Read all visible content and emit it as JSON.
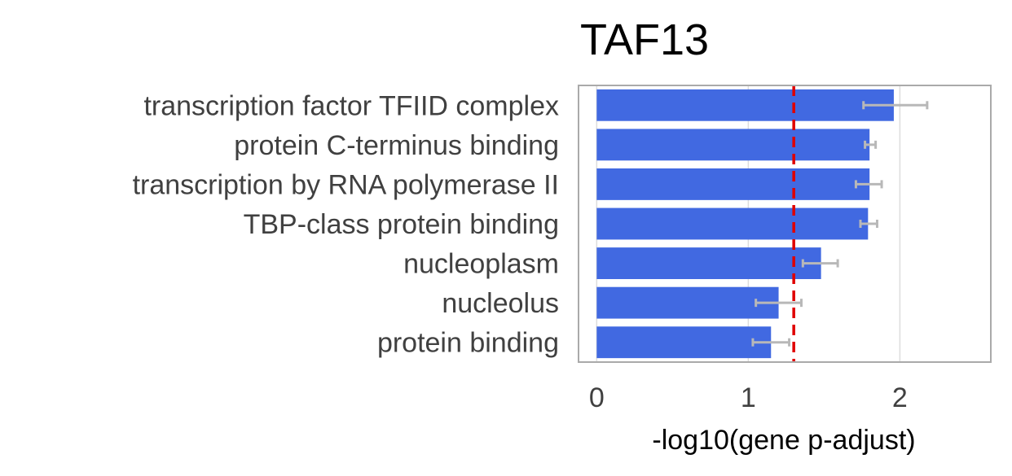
{
  "chart_data": {
    "type": "bar",
    "orientation": "horizontal",
    "title": "TAF13",
    "xlabel": "-log10(gene p-adjust)",
    "ylabel": "",
    "xlim": [
      -0.12,
      2.6
    ],
    "xticks": [
      "0",
      "1",
      "2"
    ],
    "grid": true,
    "legend": "none",
    "threshold": 1.3,
    "categories": [
      "transcription factor TFIID complex",
      "protein C-terminus binding",
      "transcription by RNA polymerase II",
      "TBP-class protein binding",
      "nucleoplasm",
      "nucleolus",
      "protein binding"
    ],
    "values": [
      1.96,
      1.8,
      1.8,
      1.79,
      1.48,
      1.2,
      1.15
    ],
    "error_low": [
      1.76,
      1.77,
      1.71,
      1.74,
      1.36,
      1.05,
      1.03
    ],
    "error_high": [
      2.18,
      1.84,
      1.88,
      1.85,
      1.59,
      1.35,
      1.27
    ],
    "colors": {
      "bar": "#4169E1",
      "error": "#B8B8B8",
      "threshold": "#E00000",
      "frame": "#AAAAAA",
      "grid": "#DDDDDD"
    }
  }
}
